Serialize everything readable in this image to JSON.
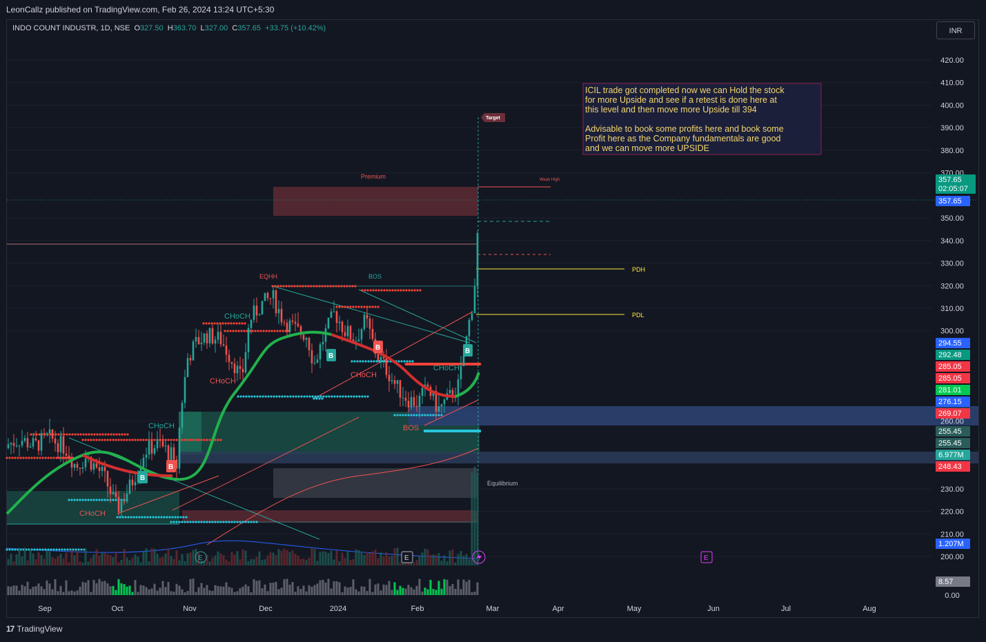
{
  "header": {
    "published": "LeonCallz published on TradingView.com, Feb 26, 2024 13:24 UTC+5:30"
  },
  "legend": {
    "symbol": "INDO COUNT INDUSTR, 1D, NSE",
    "o_label": "O",
    "o": "327.50",
    "h_label": "H",
    "h": "363.70",
    "l_label": "L",
    "l": "327.00",
    "c_label": "C",
    "c": "357.65",
    "change": "+33.75 (+10.42%)"
  },
  "currency": "INR",
  "footer": {
    "brand": "TradingView"
  },
  "note": {
    "line1": "ICIL trade got completed now we can Hold the stock",
    "line2": "for more Upside and see if a retest is done here at",
    "line3": "this level and then move more Upside  till 394",
    "line4": "Advisable to book some profits here and book some",
    "line5": "Profit here as the Company fundamentals are good",
    "line6": "and we can move more UPSIDE"
  },
  "labels": {
    "target": "Target",
    "premium": "Premium",
    "weak_high": "Weak High",
    "equilibrium": "Equilibrium",
    "pdh": "PDH",
    "pdl": "PDL",
    "eqhh": "EQHH",
    "bos1": "BOS",
    "bos2": "BOS",
    "choch1": "CHoCH",
    "choch2": "CHoCH",
    "choch3": "CHoCH",
    "choch4": "CHoCH",
    "choch5": "CHoCH",
    "choch6": "CHoCH",
    "b1": "B",
    "b2": "B",
    "b3": "B",
    "b4": "B",
    "b5": "B",
    "e1": "E",
    "e2": "E",
    "e3": "E"
  },
  "colors": {
    "bg": "#131722",
    "up": "#26a69a",
    "down": "#ef5350",
    "grid": "#1e222d",
    "premium_zone": "#5d2a33",
    "demand_zone": "#1a4d45",
    "blue_zone": "#2a3f6e",
    "ema_green": "#22b14c",
    "ema_red": "#d32f2f",
    "cyan_dots": "#26c6da",
    "red_dots": "#f44336",
    "pdh": "#ffeb3b",
    "note_bg": "#1b1f3a",
    "note_border": "#8b2252",
    "note_text": "#f5d76e"
  },
  "chart_data": {
    "type": "candlestick",
    "symbol": "INDO COUNT INDUSTR",
    "timeframe": "1D",
    "exchange": "NSE",
    "ohlc_last": {
      "open": 327.5,
      "high": 363.7,
      "low": 327.0,
      "close": 357.65,
      "change": 33.75,
      "change_pct": 10.42
    },
    "y_axis": {
      "ticks": [
        "420.00",
        "410.00",
        "400.00",
        "390.00",
        "380.00",
        "370.00",
        "350.00",
        "340.00",
        "330.00",
        "320.00",
        "310.00",
        "300.00",
        "260.00",
        "230.00",
        "220.00",
        "210.00",
        "200.00"
      ],
      "range": [
        197,
        428
      ]
    },
    "x_axis": {
      "ticks": [
        "Sep",
        "Oct",
        "Nov",
        "Dec",
        "2024",
        "Feb",
        "Mar",
        "Apr",
        "May",
        "Jun",
        "Jul",
        "Aug"
      ]
    },
    "volume_axis": {
      "ticks": [
        "8.57",
        "0.00"
      ]
    },
    "price_badges": [
      {
        "value": "357.65",
        "sub": "02:05:07",
        "color": "#089981"
      },
      {
        "value": "357.65",
        "color": "#2962ff"
      },
      {
        "value": "294.55",
        "color": "#2962ff"
      },
      {
        "value": "292.48",
        "color": "#089981"
      },
      {
        "value": "285.05",
        "color": "#f23645"
      },
      {
        "value": "285.05",
        "color": "#f23645"
      },
      {
        "value": "281.01",
        "color": "#00c853"
      },
      {
        "value": "276.15",
        "color": "#2962ff"
      },
      {
        "value": "269.07",
        "color": "#f23645"
      },
      {
        "value": "255.45",
        "color": "#2a5d5a"
      },
      {
        "value": "255.45",
        "color": "#2a5d5a"
      },
      {
        "value": "6.977M",
        "color": "#26a69a"
      },
      {
        "value": "248.43",
        "color": "#f23645"
      },
      {
        "value": "1.207M",
        "color": "#2962ff"
      },
      {
        "value": "8.57",
        "color": "#787b86"
      }
    ],
    "levels": {
      "target": 394,
      "weak_high": 364,
      "pdh": 328,
      "pdl": 307.5,
      "premium_zone": [
        351,
        364
      ],
      "equilibrium_zone": [
        226,
        239
      ],
      "discount_zone": [
        215,
        220
      ],
      "blue_zone": [
        259,
        268
      ],
      "blue_band": [
        243,
        248.5
      ]
    }
  }
}
